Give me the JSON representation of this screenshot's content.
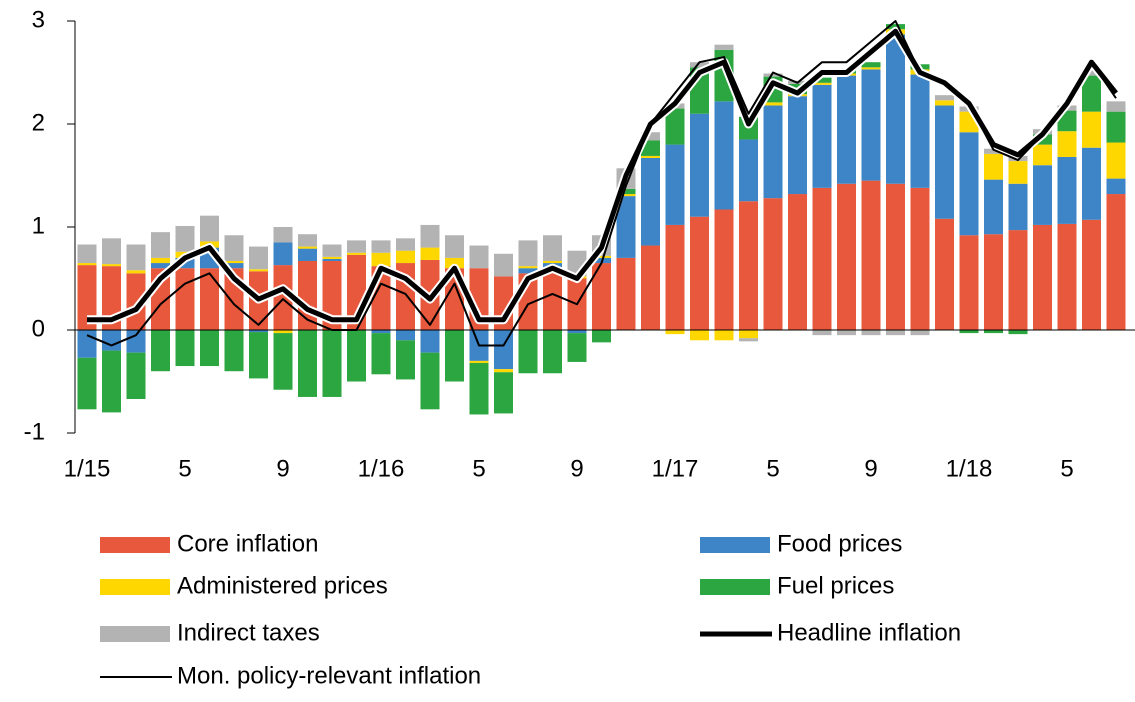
{
  "chart_data": {
    "type": "bar",
    "stacked": true,
    "categories": [
      "1/15",
      null,
      null,
      null,
      "5",
      null,
      null,
      null,
      "9",
      null,
      null,
      null,
      "1/16",
      null,
      null,
      null,
      "5",
      null,
      null,
      null,
      "9",
      null,
      null,
      null,
      "1/17",
      null,
      null,
      null,
      "5",
      null,
      null,
      null,
      "9",
      null,
      null,
      null,
      "1/18",
      null,
      null,
      null,
      "5",
      null,
      null
    ],
    "ylim": [
      -1,
      3
    ],
    "yticks": [
      -1,
      0,
      1,
      2,
      3
    ],
    "series": [
      {
        "name": "Core inflation",
        "type": "bar",
        "color": "#e8583d",
        "values": [
          0.63,
          0.62,
          0.55,
          0.6,
          0.6,
          0.6,
          0.6,
          0.57,
          0.63,
          0.67,
          0.67,
          0.73,
          0.62,
          0.65,
          0.68,
          0.6,
          0.6,
          0.52,
          0.55,
          0.55,
          0.5,
          0.65,
          0.7,
          0.82,
          1.02,
          1.1,
          1.17,
          1.25,
          1.28,
          1.32,
          1.38,
          1.42,
          1.45,
          1.42,
          1.38,
          1.08,
          0.92,
          0.93,
          0.97,
          1.02,
          1.03,
          1.07,
          1.32
        ]
      },
      {
        "name": "Food prices",
        "type": "bar",
        "color": "#3d85c6",
        "values": [
          -0.27,
          -0.2,
          -0.22,
          0.05,
          0.1,
          0.2,
          0.05,
          -0.02,
          0.22,
          0.12,
          0.02,
          0,
          -0.03,
          -0.1,
          -0.22,
          0,
          -0.3,
          -0.38,
          0.05,
          0.1,
          -0.03,
          0.05,
          0.6,
          0.85,
          0.78,
          1.0,
          1.05,
          0.6,
          0.9,
          0.95,
          1.0,
          1.05,
          1.08,
          1.45,
          1.1,
          1.1,
          1.0,
          0.53,
          0.45,
          0.58,
          0.65,
          0.7,
          0.15
        ]
      },
      {
        "name": "Administered prices",
        "type": "bar",
        "color": "#ffd700",
        "values": [
          0.02,
          0.02,
          0.03,
          0.05,
          0.06,
          0.06,
          0.02,
          0.02,
          -0.03,
          0.02,
          0.02,
          0.02,
          0.13,
          0.12,
          0.12,
          0.1,
          -0.02,
          -0.03,
          0.02,
          0.02,
          0.02,
          0.02,
          0.02,
          0.02,
          -0.04,
          -0.1,
          -0.1,
          -0.08,
          0.03,
          0.02,
          0.02,
          0.02,
          0.02,
          0.05,
          0.05,
          0.05,
          0.2,
          0.25,
          0.22,
          0.2,
          0.25,
          0.35,
          0.35
        ]
      },
      {
        "name": "Fuel prices",
        "type": "bar",
        "color": "#2ca640",
        "values": [
          -0.5,
          -0.6,
          -0.45,
          -0.4,
          -0.35,
          -0.35,
          -0.4,
          -0.45,
          -0.55,
          -0.65,
          -0.65,
          -0.5,
          -0.4,
          -0.38,
          -0.55,
          -0.5,
          -0.5,
          -0.4,
          -0.42,
          -0.42,
          -0.28,
          -0.12,
          0.05,
          0.15,
          0.35,
          0.45,
          0.5,
          0.22,
          0.25,
          0.1,
          0.05,
          0.05,
          0.05,
          0.05,
          0.05,
          0,
          -0.03,
          -0.03,
          -0.04,
          0.1,
          0.2,
          0.35,
          0.3
        ]
      },
      {
        "name": "Indirect taxes",
        "type": "bar",
        "color": "#b3b3b3",
        "values": [
          0.18,
          0.25,
          0.25,
          0.25,
          0.25,
          0.25,
          0.25,
          0.22,
          0.15,
          0.12,
          0.12,
          0.12,
          0.12,
          0.12,
          0.22,
          0.22,
          0.22,
          0.22,
          0.25,
          0.25,
          0.25,
          0.2,
          0.2,
          0.08,
          0.05,
          0.05,
          0.05,
          -0.03,
          0.03,
          0.03,
          -0.05,
          -0.05,
          -0.05,
          -0.05,
          -0.05,
          0.05,
          0.05,
          0.05,
          0.05,
          0.05,
          0.05,
          0.05,
          0.1
        ]
      },
      {
        "name": "Headline inflation",
        "type": "line",
        "color": "#000000",
        "line_width": 5,
        "values": [
          0.1,
          0.1,
          0.2,
          0.5,
          0.7,
          0.8,
          0.5,
          0.3,
          0.4,
          0.2,
          0.1,
          0.1,
          0.6,
          0.5,
          0.3,
          0.6,
          0.1,
          0.1,
          0.5,
          0.6,
          0.5,
          0.8,
          1.5,
          2.0,
          2.2,
          2.5,
          2.6,
          2.0,
          2.4,
          2.3,
          2.5,
          2.5,
          2.7,
          2.9,
          2.5,
          2.4,
          2.2,
          1.8,
          1.7,
          1.9,
          2.2,
          2.6,
          2.3
        ]
      },
      {
        "name": "Mon. policy-relevant inflation",
        "type": "line",
        "color": "#000000",
        "line_width": 2,
        "values": [
          -0.05,
          -0.15,
          -0.05,
          0.25,
          0.45,
          0.55,
          0.25,
          0.05,
          0.3,
          0.1,
          0,
          0,
          0.45,
          0.35,
          0.05,
          0.45,
          -0.15,
          -0.15,
          0.25,
          0.35,
          0.25,
          0.65,
          1.4,
          2.0,
          2.3,
          2.6,
          2.65,
          2.1,
          2.5,
          2.4,
          2.6,
          2.6,
          2.8,
          3.0,
          2.5,
          2.4,
          2.2,
          1.75,
          1.65,
          1.9,
          2.2,
          2.6,
          2.25
        ]
      }
    ]
  }
}
